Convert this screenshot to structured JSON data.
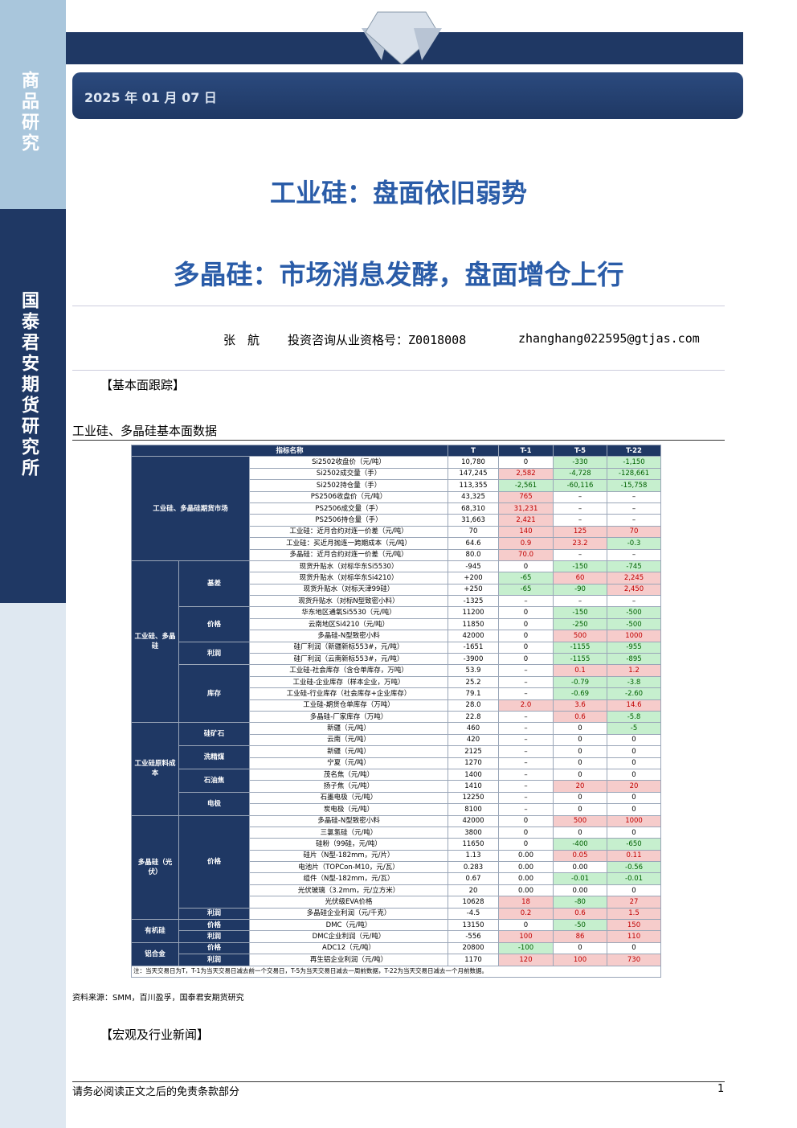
{
  "sidebar": {
    "top": "商品研究",
    "bottom": "国泰君安期货研究所"
  },
  "date": "2025 年 01 月 07 日",
  "title": "工业硅：盘面依旧弱势",
  "subtitle": "多晶硅：市场消息发酵，盘面增仓上行",
  "author": {
    "name": "张　航",
    "license": "投资咨询从业资格号：Z0018008",
    "email": "zhanghang022595@gtjas.com"
  },
  "section1": "【基本面跟踪】",
  "table": {
    "caption": "工业硅、多晶硅基本面数据",
    "header": [
      "指标名称",
      "T",
      "T-1",
      "T-5",
      "T-22"
    ],
    "groups": [
      {
        "label": "工业硅、多晶硅期货市场",
        "subgroups": [
          {
            "rows": [
              [
                "Si2502收盘价（元/吨）",
                "10,780",
                "0",
                "-330",
                "-1,150"
              ],
              [
                "Si2502成交量（手）",
                "147,245",
                "2,582",
                "-4,728",
                "-128,661"
              ],
              [
                "Si2502持仓量（手）",
                "113,355",
                "-2,561",
                "-60,116",
                "-15,758"
              ],
              [
                "PS2506收盘价（元/吨）",
                "43,325",
                "765",
                "–",
                "–"
              ],
              [
                "PS2506成交量（手）",
                "68,310",
                "31,231",
                "–",
                "–"
              ],
              [
                "PS2506持仓量（手）",
                "31,663",
                "2,421",
                "–",
                "–"
              ],
              [
                "工业硅：近月合约对连一价差（元/吨）",
                "70",
                "140",
                "125",
                "70"
              ],
              [
                "工业硅：买近月抛连一跨期成本（元/吨）",
                "64.6",
                "0.9",
                "23.2",
                "-0.3"
              ],
              [
                "多晶硅：近月合约对连一价差（元/吨）",
                "80.0",
                "70.0",
                "–",
                "–"
              ]
            ]
          }
        ]
      },
      {
        "label": "工业硅、多晶硅",
        "subgroups": [
          {
            "label": "基差",
            "rows": [
              [
                "现货升贴水（对标华东Si5530）",
                "-945",
                "0",
                "-150",
                "-745"
              ],
              [
                "现货升贴水（对标华东Si4210）",
                "+200",
                "-65",
                "60",
                "2,245"
              ],
              [
                "现货升贴水（对标天津99硅）",
                "+250",
                "-65",
                "-90",
                "2,450"
              ],
              [
                "现货升贴水（对标N型致密小料）",
                "-1325",
                "–",
                "–",
                "–"
              ]
            ]
          },
          {
            "label": "价格",
            "rows": [
              [
                "华东地区通氧Si5530（元/吨）",
                "11200",
                "0",
                "-150",
                "-500"
              ],
              [
                "云南地区Si4210（元/吨）",
                "11850",
                "0",
                "-250",
                "-500"
              ],
              [
                "多晶硅-N型致密小料",
                "42000",
                "0",
                "500",
                "1000"
              ]
            ]
          },
          {
            "label": "利润",
            "rows": [
              [
                "硅厂利润（新疆新标553#，元/吨）",
                "-1651",
                "0",
                "-1155",
                "-955"
              ],
              [
                "硅厂利润（云南新标553#，元/吨）",
                "-3900",
                "0",
                "-1155",
                "-895"
              ]
            ]
          },
          {
            "label": "库存",
            "rows": [
              [
                "工业硅-社会库存（含仓单库存，万吨）",
                "53.9",
                "–",
                "0.1",
                "1.2"
              ],
              [
                "工业硅-企业库存（样本企业，万吨）",
                "25.2",
                "–",
                "-0.79",
                "-3.8"
              ],
              [
                "工业硅-行业库存（社会库存+企业库存）",
                "79.1",
                "–",
                "-0.69",
                "-2.60"
              ],
              [
                "工业硅-期货仓单库存（万吨）",
                "28.0",
                "2.0",
                "3.6",
                "14.6"
              ],
              [
                "多晶硅-厂家库存（万吨）",
                "22.8",
                "–",
                "0.6",
                "-5.8"
              ]
            ]
          }
        ]
      },
      {
        "label": "工业硅原料成本",
        "subgroups": [
          {
            "label": "硅矿石",
            "rows": [
              [
                "新疆（元/吨）",
                "460",
                "–",
                "0",
                "-5"
              ],
              [
                "云南（元/吨）",
                "420",
                "–",
                "0",
                "0"
              ]
            ]
          },
          {
            "label": "洗精煤",
            "rows": [
              [
                "新疆（元/吨）",
                "2125",
                "–",
                "0",
                "0"
              ],
              [
                "宁夏（元/吨）",
                "1270",
                "–",
                "0",
                "0"
              ]
            ]
          },
          {
            "label": "石油焦",
            "rows": [
              [
                "茂名焦（元/吨）",
                "1400",
                "–",
                "0",
                "0"
              ],
              [
                "扬子焦（元/吨）",
                "1410",
                "–",
                "20",
                "20"
              ]
            ]
          },
          {
            "label": "电极",
            "rows": [
              [
                "石墨电极（元/吨）",
                "12250",
                "–",
                "0",
                "0"
              ],
              [
                "炭电极（元/吨）",
                "8100",
                "–",
                "0",
                "0"
              ]
            ]
          }
        ]
      },
      {
        "label": "多晶硅（光伏）",
        "subgroups": [
          {
            "label": "价格",
            "rows": [
              [
                "多晶硅-N型致密小料",
                "42000",
                "0",
                "500",
                "1000"
              ],
              [
                "三氯氢硅（元/吨）",
                "3800",
                "0",
                "0",
                "0"
              ],
              [
                "硅粉（99硅，元/吨）",
                "11650",
                "0",
                "-400",
                "-650"
              ],
              [
                "硅片（N型-182mm，元/片）",
                "1.13",
                "0.00",
                "0.05",
                "0.11"
              ],
              [
                "电池片（TOPCon-M10，元/瓦）",
                "0.283",
                "0.00",
                "0.00",
                "-0.56"
              ],
              [
                "组件（N型-182mm，元/瓦）",
                "0.67",
                "0.00",
                "-0.01",
                "-0.01"
              ],
              [
                "光伏玻璃（3.2mm，元/立方米）",
                "20",
                "0.00",
                "0.00",
                "0"
              ],
              [
                "光伏级EVA价格",
                "10628",
                "18",
                "-80",
                "27"
              ]
            ]
          },
          {
            "label": "利润",
            "rows": [
              [
                "多晶硅企业利润（元/千克）",
                "-4.5",
                "0.2",
                "0.6",
                "1.5"
              ]
            ]
          }
        ]
      },
      {
        "label": "有机硅",
        "subgroups": [
          {
            "label": "价格",
            "rows": [
              [
                "DMC（元/吨）",
                "13150",
                "0",
                "-50",
                "150"
              ]
            ]
          },
          {
            "label": "利润",
            "rows": [
              [
                "DMC企业利润（元/吨）",
                "-556",
                "100",
                "86",
                "110"
              ]
            ]
          }
        ]
      },
      {
        "label": "铝合金",
        "subgroups": [
          {
            "label": "价格",
            "rows": [
              [
                "ADC12（元/吨）",
                "20800",
                "-100",
                "0",
                "0"
              ]
            ]
          },
          {
            "label": "利润",
            "rows": [
              [
                "再生铝企业利润（元/吨）",
                "1170",
                "120",
                "100",
                "730"
              ]
            ]
          }
        ]
      }
    ],
    "note": "注：当天交易日为T，T-1为当天交易日减去前一个交易日，T-5为当天交易日减去一周前数据，T-22为当天交易日减去一个月前数据。"
  },
  "source": "资料来源：SMM，百川盈孚，国泰君安期货研究",
  "section2": "【宏观及行业新闻】",
  "footer": {
    "disclaimer": "请务必阅读正文之后的免责条款部分",
    "page": "1"
  }
}
